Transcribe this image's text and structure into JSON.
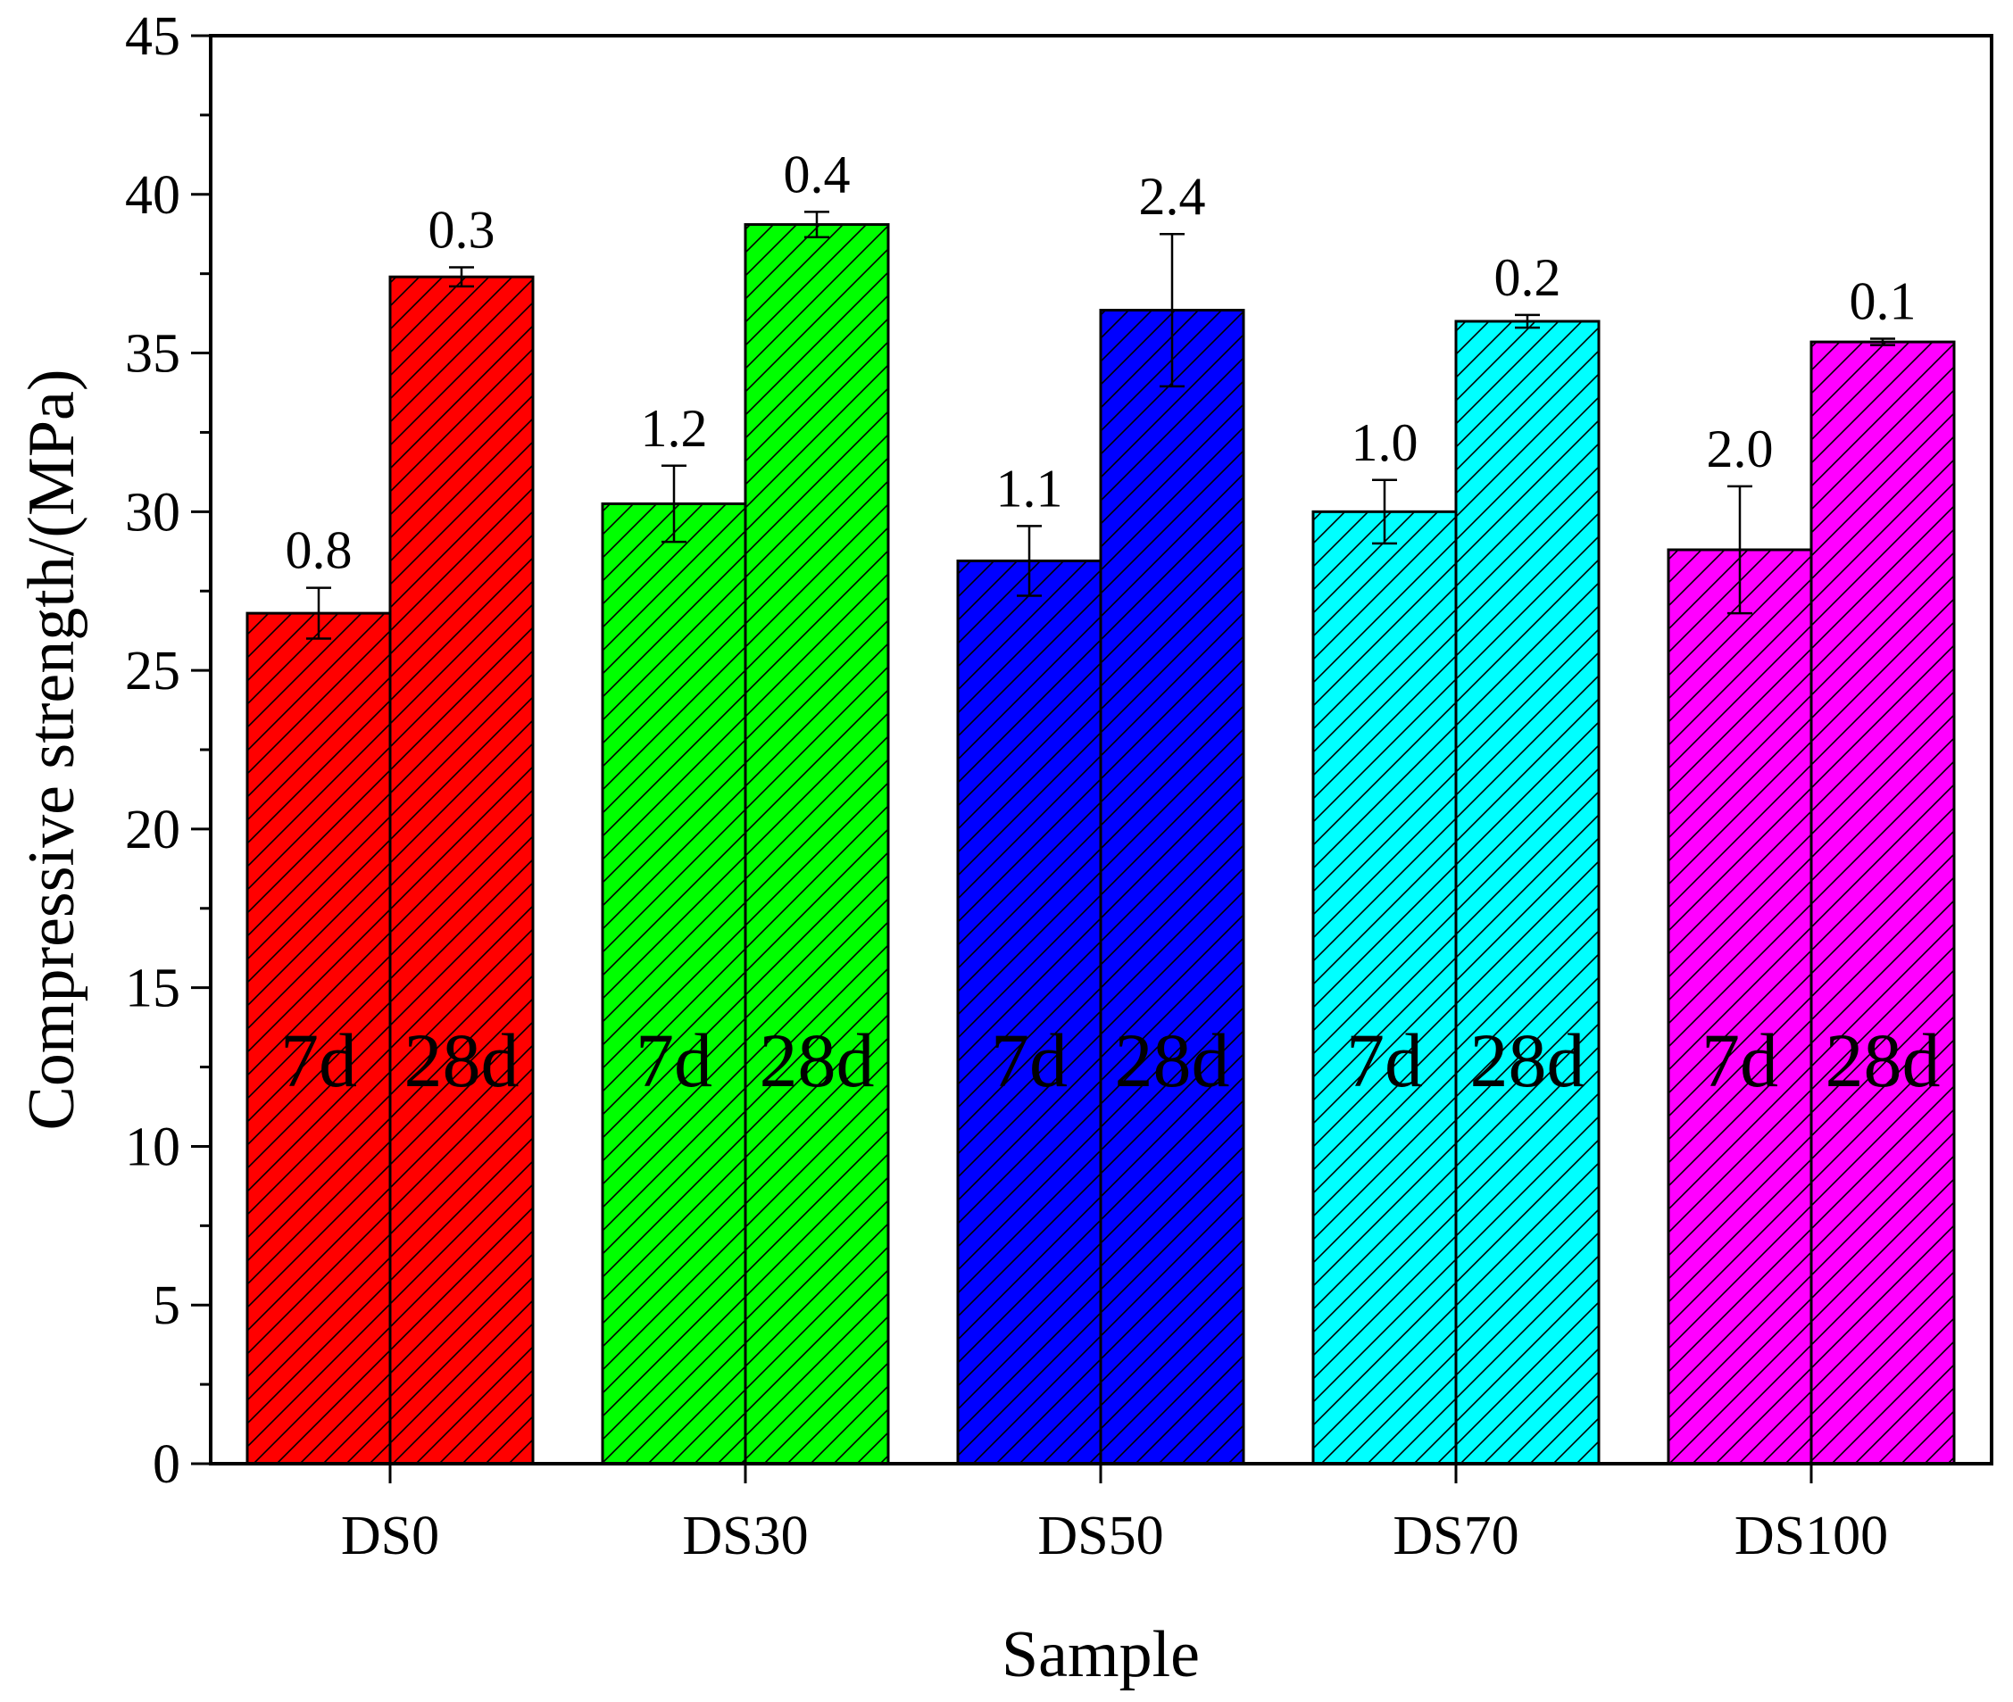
{
  "chart_data": {
    "type": "bar",
    "title": "",
    "xlabel": "Sample",
    "ylabel": "Compressive strength/(MPa)",
    "ylim": [
      0,
      45
    ],
    "yticks": [
      0,
      5,
      10,
      15,
      20,
      25,
      30,
      35,
      40,
      45
    ],
    "categories": [
      "DS0",
      "DS30",
      "DS50",
      "DS70",
      "DS100"
    ],
    "colors": [
      "#ff0000",
      "#00ff00",
      "#0000ff",
      "#00ffff",
      "#ff00ff"
    ],
    "hatch": "diagonal",
    "series": [
      {
        "name": "7d",
        "values": [
          26.8,
          30.25,
          28.45,
          30.0,
          28.8
        ],
        "errors": [
          0.8,
          1.2,
          1.1,
          1.0,
          2.0
        ],
        "error_labels": [
          "0.8",
          "1.2",
          "1.1",
          "1.0",
          "2.0"
        ]
      },
      {
        "name": "28d",
        "values": [
          37.4,
          39.05,
          36.35,
          36.0,
          35.35
        ],
        "errors": [
          0.3,
          0.4,
          2.4,
          0.2,
          0.1
        ],
        "error_labels": [
          "0.3",
          "0.4",
          "2.4",
          "0.2",
          "0.1"
        ]
      }
    ],
    "grid": false,
    "legend": "none"
  }
}
